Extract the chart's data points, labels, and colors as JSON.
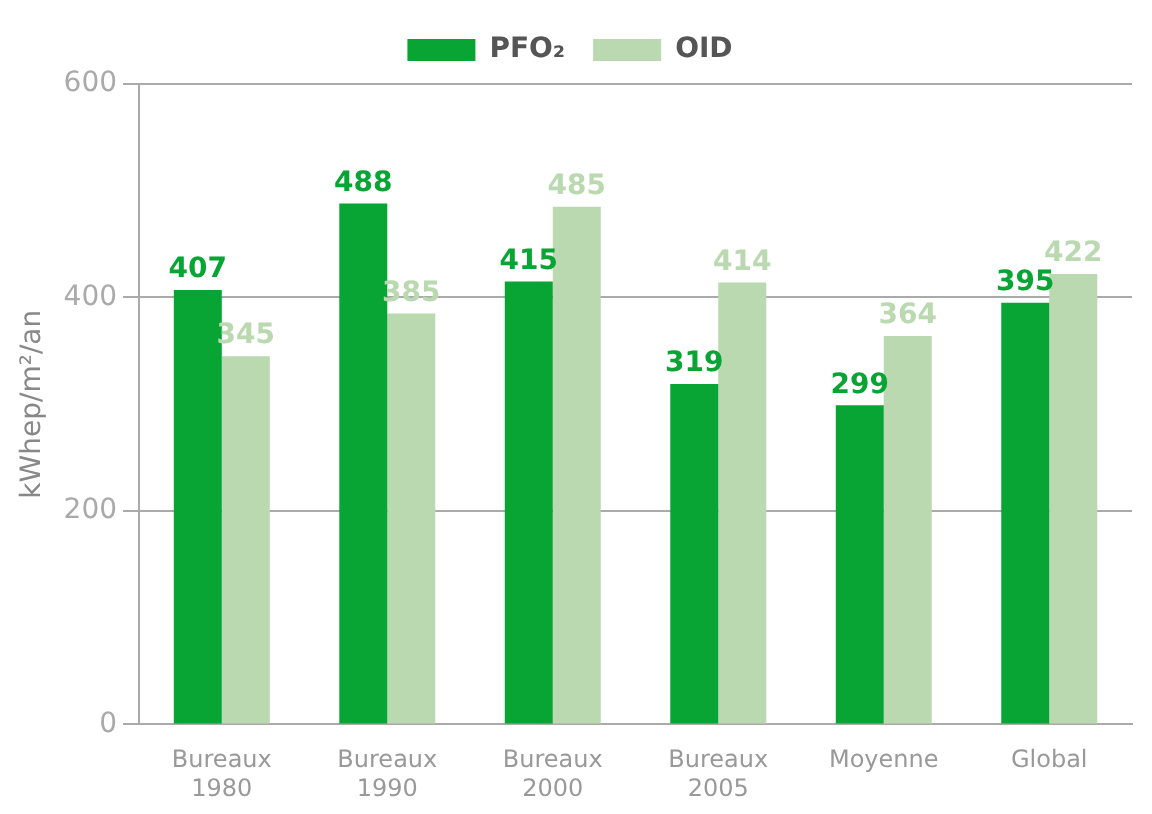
{
  "chart_data": {
    "type": "bar",
    "ylabel": "kWhep/m²/an",
    "categories": [
      "Bureaux 1980",
      "Bureaux 1990",
      "Bureaux 2000",
      "Bureaux 2005",
      "Moyenne",
      "Global"
    ],
    "series": [
      {
        "name": "PFO₂",
        "color": "#08a434",
        "values": [
          407,
          488,
          415,
          319,
          299,
          395
        ]
      },
      {
        "name": "OID",
        "color": "#bad9b0",
        "values": [
          345,
          385,
          485,
          414,
          364,
          422
        ]
      }
    ],
    "ylim": [
      0,
      600
    ],
    "yticks": [
      0,
      200,
      400,
      600
    ],
    "grid": "y",
    "legend": "top",
    "data_labels": true
  }
}
